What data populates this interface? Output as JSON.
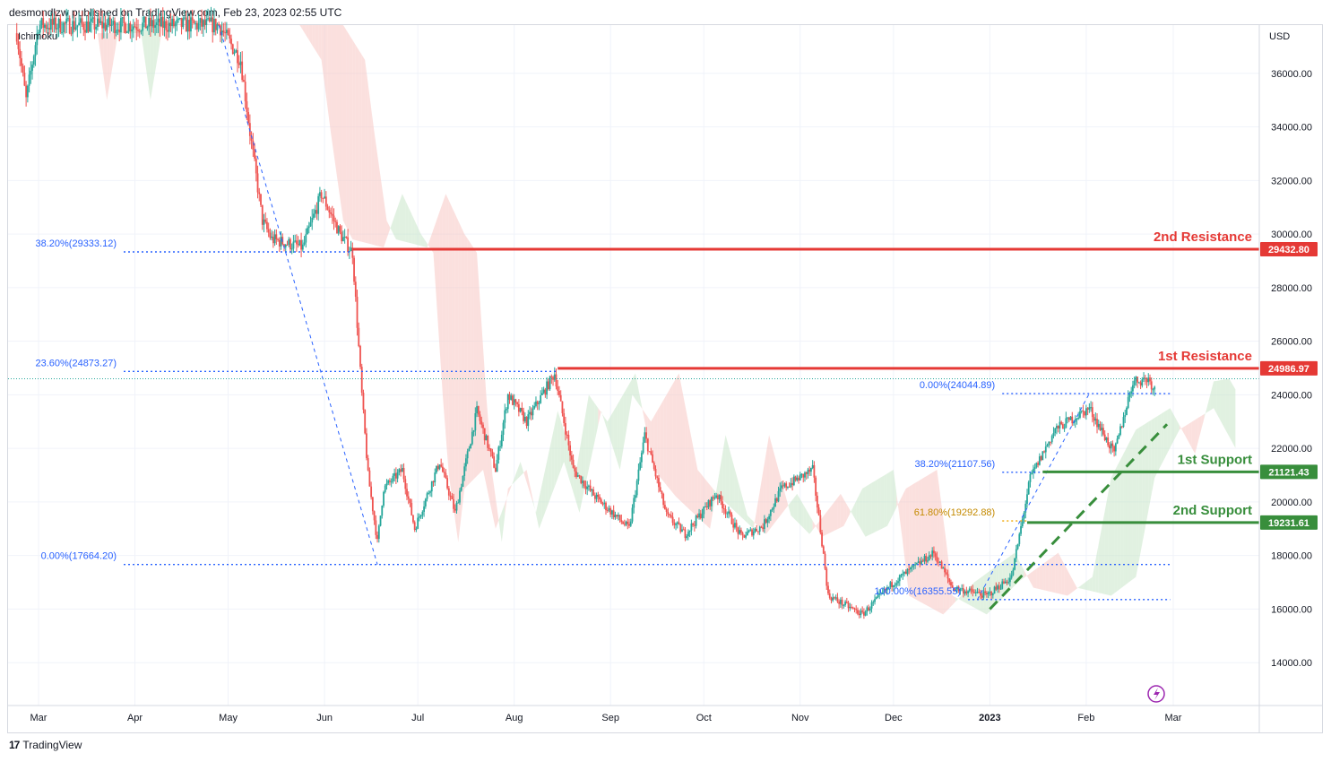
{
  "header": {
    "published_by": "desmondlzw published on TradingView.com, Feb 23, 2023 02:55 UTC"
  },
  "footer": {
    "brand": "TradingView",
    "logo_glyph": "17"
  },
  "indicator_label": "Ichimoku",
  "currency": "USD",
  "colors": {
    "up": "#26a69a",
    "down": "#ef5350",
    "resistance": "#e53935",
    "support": "#388e3c",
    "fib": "#2962ff",
    "fib_gold": "#f0a500",
    "cloud": "#f7c6c3",
    "cloud_green": "#c8e6c9"
  },
  "chart_data": {
    "type": "candlestick",
    "y_unit": "USD",
    "ylim": [
      12400,
      37800
    ],
    "y_ticks": [
      14000,
      16000,
      18000,
      20000,
      22000,
      24000,
      26000,
      28000,
      30000,
      32000,
      34000,
      36000
    ],
    "y_tick_labels": [
      "14000.00",
      "16000.00",
      "18000.00",
      "20000.00",
      "22000.00",
      "24000.00",
      "26000.00",
      "28000.00",
      "30000.00",
      "32000.00",
      "34000.00",
      "36000.00"
    ],
    "x_labels": [
      {
        "label": "Mar",
        "date": "2022-03-01"
      },
      {
        "label": "Apr",
        "date": "2022-04-01"
      },
      {
        "label": "May",
        "date": "2022-05-01"
      },
      {
        "label": "Jun",
        "date": "2022-06-01"
      },
      {
        "label": "Jul",
        "date": "2022-07-01"
      },
      {
        "label": "Aug",
        "date": "2022-08-01"
      },
      {
        "label": "Sep",
        "date": "2022-09-01"
      },
      {
        "label": "Oct",
        "date": "2022-10-01"
      },
      {
        "label": "Nov",
        "date": "2022-11-01"
      },
      {
        "label": "Dec",
        "date": "2022-12-01"
      },
      {
        "label": "2023",
        "date": "2023-01-01"
      },
      {
        "label": "Feb",
        "date": "2023-02-01"
      },
      {
        "label": "Mar",
        "date": "2023-03-01"
      }
    ],
    "price_path": [
      {
        "date": "2022-02-22",
        "price": 37500
      },
      {
        "date": "2022-02-25",
        "price": 35000
      },
      {
        "date": "2022-03-01",
        "price": 37800
      },
      {
        "date": "2022-04-28",
        "price": 37800
      },
      {
        "date": "2022-05-05",
        "price": 36500
      },
      {
        "date": "2022-05-08",
        "price": 33800
      },
      {
        "date": "2022-05-12",
        "price": 30500
      },
      {
        "date": "2022-05-15",
        "price": 29800
      },
      {
        "date": "2022-05-25",
        "price": 29500
      },
      {
        "date": "2022-05-31",
        "price": 31500
      },
      {
        "date": "2022-06-06",
        "price": 30000
      },
      {
        "date": "2022-06-10",
        "price": 29300
      },
      {
        "date": "2022-06-13",
        "price": 24000
      },
      {
        "date": "2022-06-15",
        "price": 21000
      },
      {
        "date": "2022-06-18",
        "price": 18500
      },
      {
        "date": "2022-06-20",
        "price": 20500
      },
      {
        "date": "2022-06-26",
        "price": 21200
      },
      {
        "date": "2022-06-30",
        "price": 19000
      },
      {
        "date": "2022-07-08",
        "price": 21500
      },
      {
        "date": "2022-07-13",
        "price": 19600
      },
      {
        "date": "2022-07-20",
        "price": 23400
      },
      {
        "date": "2022-07-26",
        "price": 21200
      },
      {
        "date": "2022-07-30",
        "price": 24000
      },
      {
        "date": "2022-08-05",
        "price": 23000
      },
      {
        "date": "2022-08-14",
        "price": 24800
      },
      {
        "date": "2022-08-20",
        "price": 21200
      },
      {
        "date": "2022-08-27",
        "price": 20200
      },
      {
        "date": "2022-09-07",
        "price": 19000
      },
      {
        "date": "2022-09-12",
        "price": 22500
      },
      {
        "date": "2022-09-19",
        "price": 19500
      },
      {
        "date": "2022-09-25",
        "price": 18800
      },
      {
        "date": "2022-10-05",
        "price": 20300
      },
      {
        "date": "2022-10-13",
        "price": 18700
      },
      {
        "date": "2022-10-20",
        "price": 19100
      },
      {
        "date": "2022-10-26",
        "price": 20500
      },
      {
        "date": "2022-11-05",
        "price": 21200
      },
      {
        "date": "2022-11-08",
        "price": 18500
      },
      {
        "date": "2022-11-10",
        "price": 16500
      },
      {
        "date": "2022-11-21",
        "price": 15800
      },
      {
        "date": "2022-12-01",
        "price": 17000
      },
      {
        "date": "2022-12-14",
        "price": 18100
      },
      {
        "date": "2022-12-20",
        "price": 16800
      },
      {
        "date": "2022-12-31",
        "price": 16500
      },
      {
        "date": "2023-01-08",
        "price": 17200
      },
      {
        "date": "2023-01-14",
        "price": 20900
      },
      {
        "date": "2023-01-22",
        "price": 22700
      },
      {
        "date": "2023-02-02",
        "price": 23500
      },
      {
        "date": "2023-02-10",
        "price": 21800
      },
      {
        "date": "2023-02-16",
        "price": 24500
      },
      {
        "date": "2023-02-21",
        "price": 24600
      },
      {
        "date": "2023-02-23",
        "price": 24200
      }
    ],
    "horizontal_levels": [
      {
        "name": "2nd Resistance",
        "value": 29432.8,
        "label": "29432.80",
        "color": "#e53935",
        "from_date": "2022-06-10"
      },
      {
        "name": "1st Resistance",
        "value": 24986.97,
        "label": "24986.97",
        "color": "#e53935",
        "from_date": "2022-08-15"
      },
      {
        "name": "1st Support",
        "value": 21121.43,
        "label": "21121.43",
        "color": "#388e3c",
        "from_date": "2023-01-18"
      },
      {
        "name": "2nd Support",
        "value": 19231.61,
        "label": "19231.61",
        "color": "#388e3c",
        "from_date": "2023-01-13"
      }
    ],
    "fibonacci": [
      {
        "label": "38.20%(29333.12)",
        "value": 29333.12,
        "from_date": "2022-03-01",
        "to_date": "2022-06-10",
        "color": "#2962ff"
      },
      {
        "label": "23.60%(24873.27)",
        "value": 24873.27,
        "from_date": "2022-03-01",
        "to_date": "2022-08-15",
        "color": "#2962ff"
      },
      {
        "label": "0.00%(17664.20)",
        "value": 17664.2,
        "from_date": "2022-03-01",
        "to_date": "2023-02-28",
        "color": "#2962ff"
      },
      {
        "label": "0.00%(24044.89)",
        "value": 24044.89,
        "from_date": "2023-01-05",
        "to_date": "2023-02-28",
        "color": "#2962ff"
      },
      {
        "label": "38.20%(21107.56)",
        "value": 21107.56,
        "from_date": "2023-01-05",
        "to_date": "2023-01-18",
        "color": "#2962ff"
      },
      {
        "label": "61.80%(19292.88)",
        "value": 19292.88,
        "from_date": "2023-01-05",
        "to_date": "2023-01-13",
        "color": "#f0a500"
      },
      {
        "label": "100.00%(16355.55)",
        "value": 16355.55,
        "from_date": "2022-12-25",
        "to_date": "2023-02-28",
        "color": "#2962ff"
      }
    ],
    "trend_lines": [
      {
        "from": {
          "date": "2022-04-28",
          "price": 37800
        },
        "to": {
          "date": "2022-06-18",
          "price": 17664.2
        },
        "style": "dashed",
        "color": "#2962ff"
      },
      {
        "from": {
          "date": "2022-12-28",
          "price": 16355.55
        },
        "to": {
          "date": "2023-02-02",
          "price": 24044.89
        },
        "style": "dashed",
        "color": "#2962ff"
      },
      {
        "from": {
          "date": "2023-01-01",
          "price": 16000
        },
        "to": {
          "date": "2023-02-27",
          "price": 22900
        },
        "style": "dashed-bold",
        "color": "#388e3c"
      }
    ],
    "current_price": 24600
  }
}
